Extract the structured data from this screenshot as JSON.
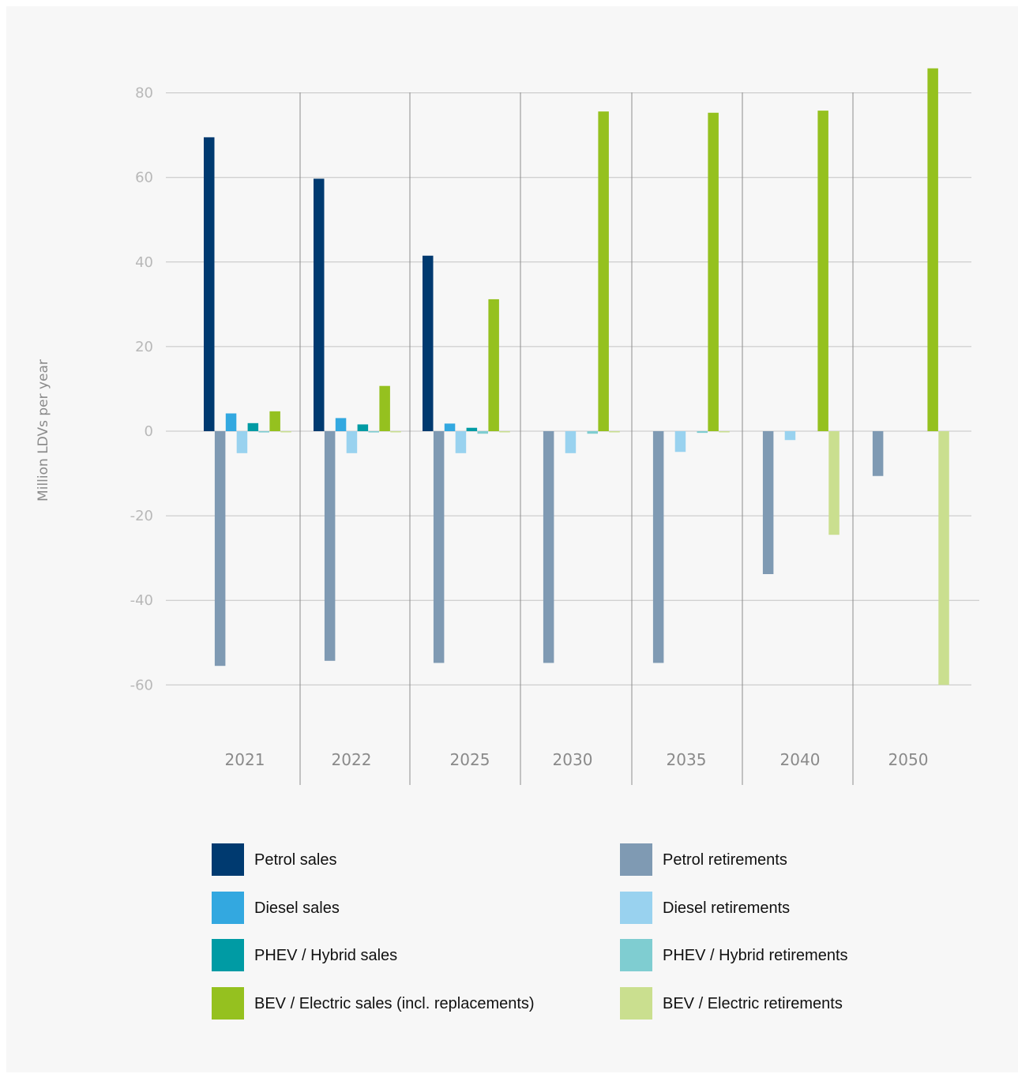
{
  "chart_data": {
    "type": "bar",
    "title": "",
    "xlabel": "",
    "ylabel": "Million LDVs per year",
    "ylim": [
      -70,
      90
    ],
    "yticks": [
      80,
      60,
      40,
      20,
      0,
      -20,
      -40,
      -60
    ],
    "ytick_labels": [
      "80",
      "60",
      "40",
      "20",
      "0",
      "-20",
      "-40",
      "-60"
    ],
    "grid": true,
    "legend_position": "bottom",
    "categories": [
      "2021",
      "2022",
      "2025",
      "2030",
      "2035",
      "2040",
      "2050"
    ],
    "series": [
      {
        "name": "Petrol sales",
        "color": "#003a70",
        "values": [
          69.5,
          59.7,
          41.5,
          0,
          0,
          0,
          0
        ]
      },
      {
        "name": "Petrol retirements",
        "color": "#7f9ab3",
        "values": [
          -55.5,
          -54.3,
          -54.8,
          -54.8,
          -54.8,
          -33.8,
          -10.6
        ]
      },
      {
        "name": "Diesel sales",
        "color": "#33a8e0",
        "values": [
          4.2,
          3.1,
          1.8,
          0,
          0,
          0,
          0
        ]
      },
      {
        "name": "Diesel retirements",
        "color": "#99d2ef",
        "values": [
          -5.2,
          -5.2,
          -5.2,
          -5.2,
          -4.9,
          -2.1,
          0
        ]
      },
      {
        "name": "PHEV / Hybrid sales",
        "color": "#009ba4",
        "values": [
          1.9,
          1.6,
          0.8,
          0,
          0,
          0,
          0
        ]
      },
      {
        "name": "PHEV / Hybrid retirements",
        "color": "#7fcdd1",
        "values": [
          -0.3,
          -0.3,
          -0.6,
          -0.6,
          -0.4,
          0,
          0
        ]
      },
      {
        "name": "BEV / Electric sales (incl. replacements)",
        "color": "#95c11f",
        "values": [
          4.7,
          10.7,
          31.2,
          75.6,
          75.3,
          75.8,
          85.8
        ]
      },
      {
        "name": "BEV / Electric retirements",
        "color": "#cadf8f",
        "values": [
          -0.2,
          -0.2,
          -0.2,
          -0.2,
          -0.2,
          -24.5,
          -60.0
        ]
      }
    ]
  }
}
